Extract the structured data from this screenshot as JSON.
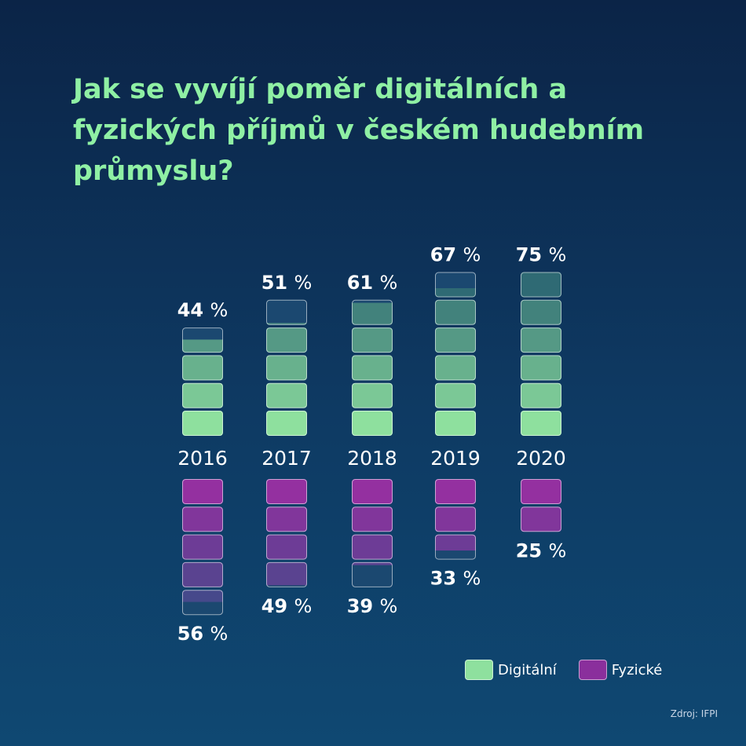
{
  "title": "Jak se vyvíjí poměr digitálních a fyzických příjmů v českém hudebním průmyslu?",
  "chart_data": {
    "type": "bar",
    "categories": [
      "2016",
      "2017",
      "2018",
      "2019",
      "2020"
    ],
    "unit": "%",
    "series": [
      {
        "name": "Digitální",
        "values": [
          44,
          51,
          61,
          67,
          75
        ],
        "labels": [
          "44",
          "51",
          "61",
          "67",
          "75"
        ]
      },
      {
        "name": "Fyzické",
        "values": [
          56,
          49,
          39,
          33,
          25
        ],
        "labels": [
          "56",
          "49",
          "39",
          "33",
          "25"
        ]
      }
    ],
    "colors": {
      "digital_light": "#8ee09e",
      "digital_dark": "#2f6a74",
      "physical_light": "#9430a0",
      "physical_dark": "#334f86",
      "empty": "#1b4870"
    }
  },
  "legend": {
    "digital": "Digitální",
    "physical": "Fyzické"
  },
  "source": "Zdroj: IFPI"
}
